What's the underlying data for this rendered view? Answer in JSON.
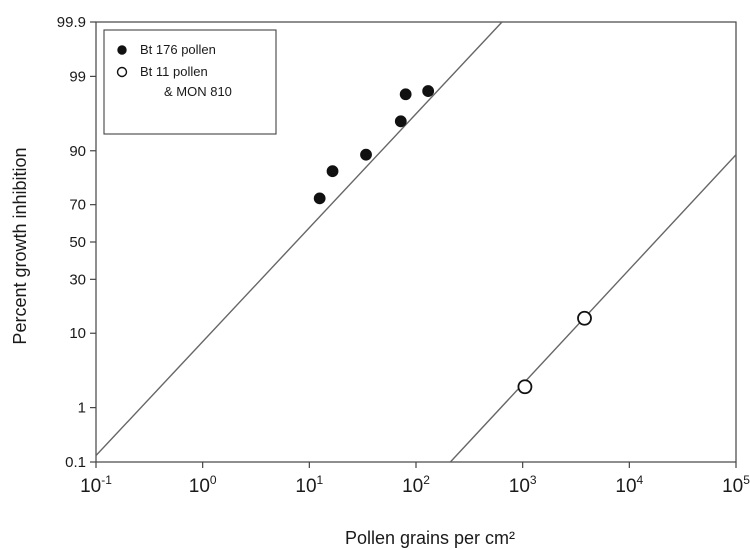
{
  "chart_data": {
    "type": "scatter",
    "xlabel": "Pollen grains per cm²",
    "ylabel": "Percent growth inhibition",
    "x_scale": "log10",
    "y_scale": "probit",
    "xlim": [
      0.1,
      100000
    ],
    "ylim": [
      0.1,
      99.9
    ],
    "x_ticks": [
      {
        "value": 0.1,
        "base": "10",
        "exp": "-1"
      },
      {
        "value": 1,
        "base": "10",
        "exp": "0"
      },
      {
        "value": 10,
        "base": "10",
        "exp": "1"
      },
      {
        "value": 100,
        "base": "10",
        "exp": "2"
      },
      {
        "value": 1000,
        "base": "10",
        "exp": "3"
      },
      {
        "value": 10000,
        "base": "10",
        "exp": "4"
      },
      {
        "value": 100000,
        "base": "10",
        "exp": "5"
      }
    ],
    "y_ticks": [
      {
        "value": 0.1,
        "label": "0.1"
      },
      {
        "value": 1,
        "label": "1"
      },
      {
        "value": 10,
        "label": "10"
      },
      {
        "value": 30,
        "label": "30"
      },
      {
        "value": 50,
        "label": "50"
      },
      {
        "value": 70,
        "label": "70"
      },
      {
        "value": 90,
        "label": "90"
      },
      {
        "value": 99,
        "label": "99"
      },
      {
        "value": 99.9,
        "label": "99.9"
      }
    ],
    "series": [
      {
        "name": "Bt 176 pollen",
        "marker": "filled-circle",
        "points": [
          {
            "x": 12.5,
            "y": 73
          },
          {
            "x": 16.5,
            "y": 84
          },
          {
            "x": 34,
            "y": 89
          },
          {
            "x": 72,
            "y": 95.5
          },
          {
            "x": 80,
            "y": 98.1
          },
          {
            "x": 130,
            "y": 98.3
          }
        ],
        "fit_line": [
          {
            "x": 0.1,
            "y": 0.135
          },
          {
            "x": 640,
            "y": 99.9
          }
        ]
      },
      {
        "name": "Bt 11 pollen\n& MON 810",
        "marker": "open-circle",
        "points": [
          {
            "x": 1050,
            "y": 2.1
          },
          {
            "x": 3800,
            "y": 14.2
          }
        ],
        "fit_line": [
          {
            "x": 210,
            "y": 0.1
          },
          {
            "x": 100000,
            "y": 89
          }
        ]
      }
    ],
    "legend": {
      "position": "top-left",
      "entries": [
        {
          "marker": "filled-circle",
          "lines": [
            "Bt 176 pollen"
          ]
        },
        {
          "marker": "open-circle",
          "lines": [
            "Bt 11 pollen",
            "& MON 810"
          ]
        }
      ]
    },
    "grid": false
  }
}
